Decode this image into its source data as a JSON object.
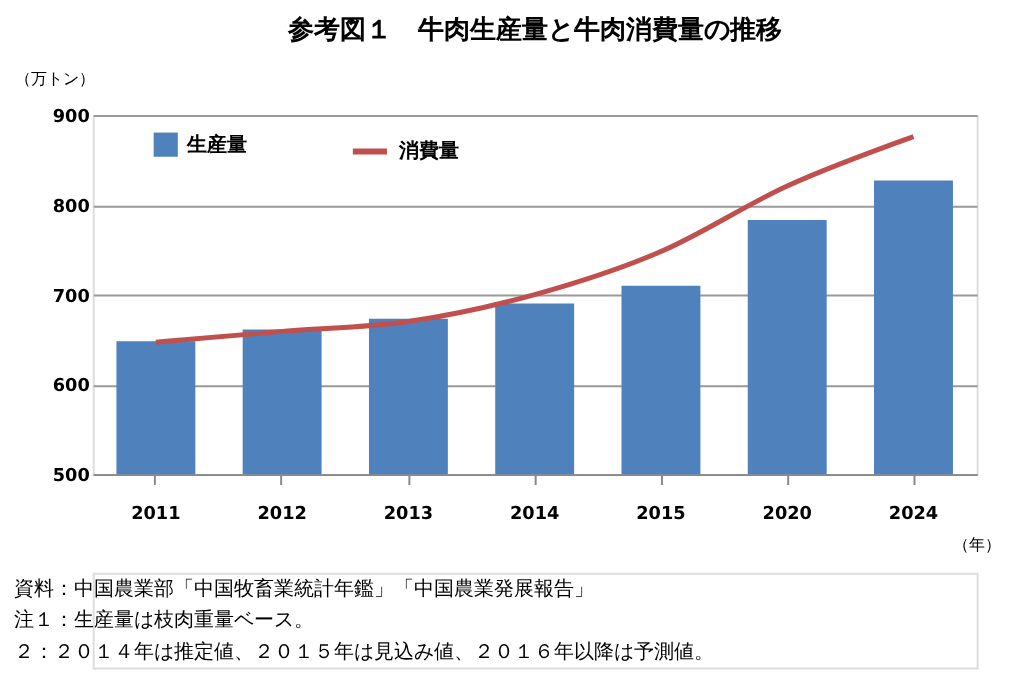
{
  "chart_data": {
    "type": "bar",
    "title": "参考図１　牛肉生産量と牛肉消費量の推移",
    "ylabel": "（万トン）",
    "xlabel": "（年）",
    "categories": [
      "2011",
      "2012",
      "2013",
      "2014",
      "2015",
      "2020",
      "2024"
    ],
    "series": [
      {
        "name": "生産量",
        "color": "#4f81bd",
        "values": [
          648,
          661,
          673,
          690,
          710,
          783,
          827
        ]
      },
      {
        "name": "消費量",
        "type": "line",
        "color": "#c0504d",
        "values": [
          647,
          659,
          670,
          700,
          748,
          821,
          876
        ]
      }
    ],
    "ylim": [
      500,
      900
    ],
    "yticks": [
      500,
      600,
      700,
      800,
      900
    ],
    "grid": "y",
    "legend": "top left",
    "annotations": [
      "資料：中国農業部「中国牧畜業統計年鑑」「中国農業発展報告」",
      "注１：生産量は枝肉重量ベース。",
      "　２：２０１４年は推定値、２０１５年は見込み値、２０１６年以降は予測値。"
    ]
  }
}
